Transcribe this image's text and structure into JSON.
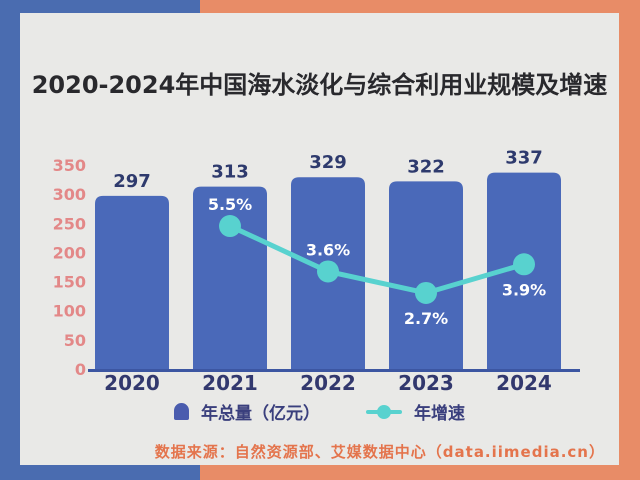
{
  "page": {
    "background_left_color": "#4a6cb0",
    "background_right_color": "#e88c67",
    "card_color": "#e9e9e7"
  },
  "title": "2020-2024年中国海水淡化与综合利用业规模及增速",
  "source_note": "数据来源：自然资源部、艾媒数据中心（data.iimedia.cn）",
  "chart_data": {
    "type": "bar+line combo",
    "categories": [
      "2020",
      "2021",
      "2022",
      "2023",
      "2024"
    ],
    "series": [
      {
        "name": "年总量（亿元）",
        "type": "bar",
        "values": [
          297,
          313,
          329,
          322,
          337
        ],
        "color": "#4a69b9",
        "value_label_color": "#2e3a6d",
        "axis": "left"
      },
      {
        "name": "年增速",
        "type": "line",
        "values": [
          null,
          5.5,
          3.6,
          2.7,
          3.9
        ],
        "point_labels": [
          "",
          "5.5%",
          "3.6%",
          "2.7%",
          "3.9%"
        ],
        "label_position": [
          null,
          "above",
          "above",
          "below",
          "below"
        ],
        "color": "#58d2cf",
        "point_label_color": "#ffffff",
        "axis": "right"
      }
    ],
    "y_axis_ticks": [
      0,
      50,
      100,
      150,
      200,
      250,
      300,
      350
    ],
    "y_axis_range": [
      0,
      350
    ],
    "y_axis_tick_color": "#e38888",
    "x_axis_label_color": "#32386e",
    "axis_line_color": "#3c56a2",
    "grid": "off",
    "legend_position": "bottom"
  }
}
